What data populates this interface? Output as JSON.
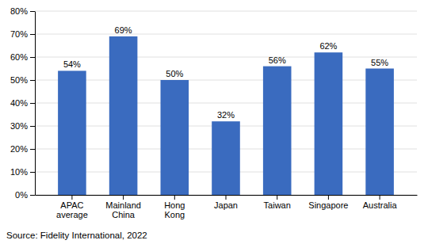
{
  "chart_data": {
    "type": "bar",
    "categories": [
      "APAC\naverage",
      "Mainland\nChina",
      "Hong\nKong",
      "Japan",
      "Taiwan",
      "Singapore",
      "Australia"
    ],
    "values": [
      54,
      69,
      50,
      32,
      56,
      62,
      55
    ],
    "value_labels": [
      "54%",
      "69%",
      "50%",
      "32%",
      "56%",
      "62%",
      "55%"
    ],
    "color": "#3a6bbf",
    "ylim": [
      0,
      80
    ],
    "yticks": [
      {
        "value": 0,
        "label": "0%"
      },
      {
        "value": 10,
        "label": "10%"
      },
      {
        "value": 20,
        "label": "20%"
      },
      {
        "value": 30,
        "label": "30%"
      },
      {
        "value": 40,
        "label": "40%"
      },
      {
        "value": 50,
        "label": "50%"
      },
      {
        "value": 60,
        "label": "60%"
      },
      {
        "value": 70,
        "label": "70%"
      },
      {
        "value": 80,
        "label": "80%"
      }
    ],
    "grid": true,
    "data_labels": true,
    "source": "Source: Fidelity International, 2022"
  }
}
